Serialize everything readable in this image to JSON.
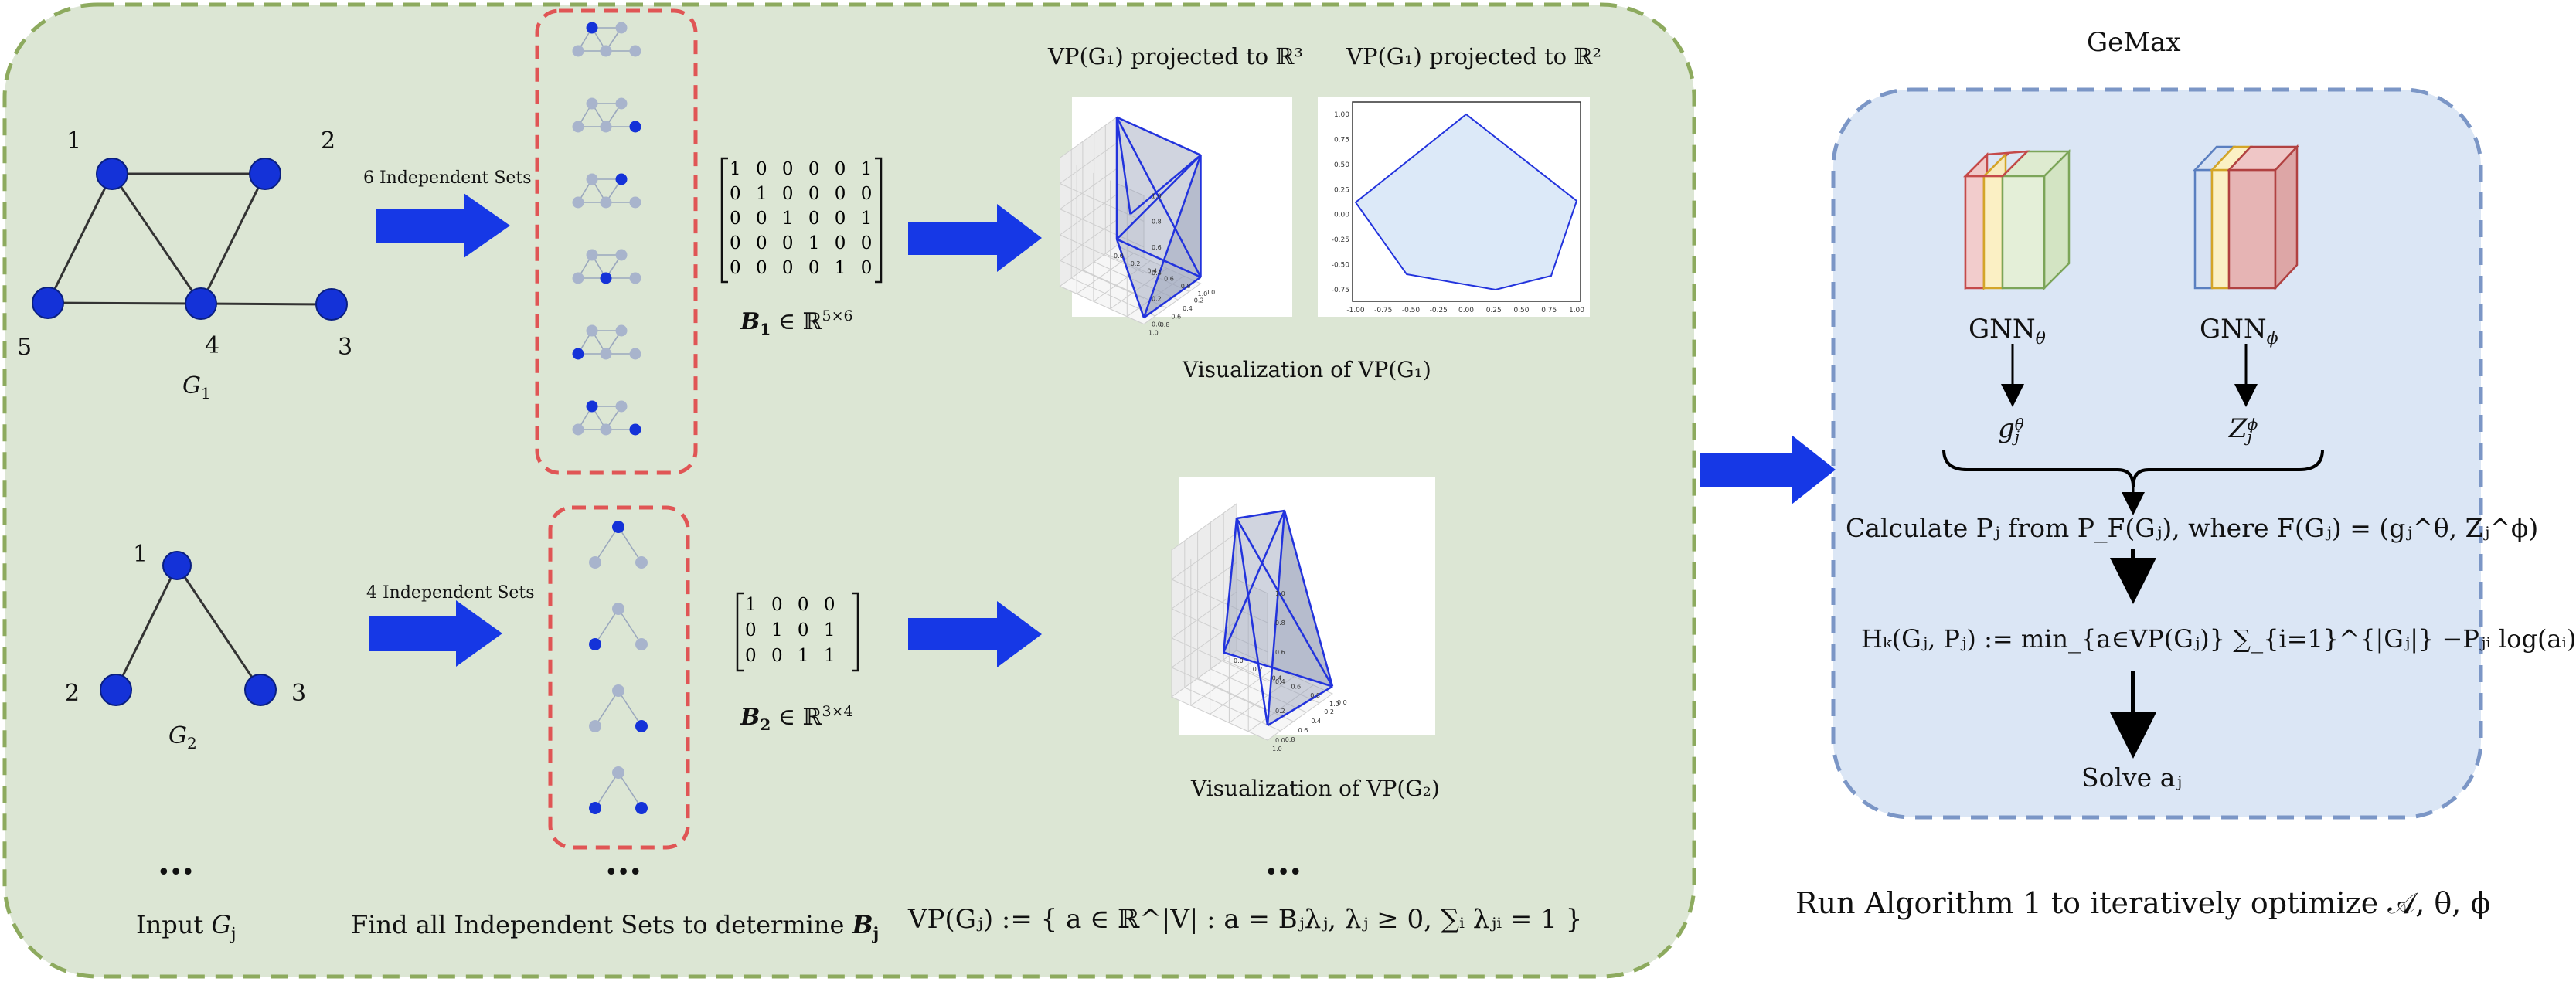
{
  "graph1": {
    "node_labels": [
      "1",
      "2",
      "3",
      "4",
      "5"
    ],
    "name": "G",
    "name_sub": "1"
  },
  "graph2": {
    "node_labels": [
      "1",
      "2",
      "3"
    ],
    "name": "G",
    "name_sub": "2"
  },
  "arrow1_label": "6 Independent Sets",
  "arrow2_label": "4 Independent Sets",
  "matrix1": {
    "rows": [
      "1 0 0 0 0 1",
      "0 1 0 0 0 0",
      "0 0 1 0 0 1",
      "0 0 0 1 0 0",
      "0 0 0 0 1 0"
    ],
    "caption_var": "B",
    "caption_sub": "1",
    "caption_rest": " ∈ ℝ",
    "caption_sup": "5×6"
  },
  "matrix2": {
    "rows": [
      "1 0 0 0",
      "0 1 0 1",
      "0 0 1 1"
    ],
    "caption_var": "B",
    "caption_sub": "2",
    "caption_rest": " ∈ ℝ",
    "caption_sup": "3×4"
  },
  "proj3_title": "VP(G₁) projected to ℝ³",
  "proj2_title": "VP(G₁) projected to ℝ²",
  "vis1_caption": "Visualization of VP(G₁)",
  "vis2_caption": "Visualization of VP(G₂)",
  "plot2d": {
    "xticks": [
      "-1.00",
      "-0.75",
      "-0.50",
      "-0.25",
      "0.00",
      "0.25",
      "0.50",
      "0.75",
      "1.00"
    ],
    "yticks": [
      "1.00",
      "0.75",
      "0.50",
      "0.25",
      "0.00",
      "-0.25",
      "-0.50",
      "-0.75"
    ]
  },
  "plot3d_a": {
    "zticks": [
      "1.0",
      "0.8",
      "0.6",
      "0.4",
      "0.2",
      "0.0"
    ],
    "xticks": [
      "0.0",
      "0.2",
      "0.4",
      "0.6",
      "0.8",
      "1.0"
    ],
    "yticks": [
      "0.0",
      "0.2",
      "0.4",
      "0.6",
      "0.8",
      "1.0"
    ]
  },
  "plot3d_b": {
    "zticks": [
      "1.0",
      "0.8",
      "0.6",
      "0.4",
      "0.2",
      "0.0"
    ],
    "xticks": [
      "0.0",
      "0.2",
      "0.4",
      "0.6",
      "0.8",
      "1.0"
    ],
    "yticks": [
      "0.0",
      "0.2",
      "0.4",
      "0.6",
      "0.8",
      "1.0"
    ]
  },
  "dots": "•••",
  "bottom": {
    "input_label": "Input ",
    "input_var": "G",
    "input_sub": "j",
    "find_label": "Find all Independent Sets to determine  ",
    "find_var": "B",
    "find_sub": "j",
    "vp_definition": "VP(Gⱼ) := { a ∈ ℝ^|V| : a = Bⱼλⱼ,  λⱼ ≥ 0,  ∑ᵢ λⱼᵢ = 1 }"
  },
  "gemax": {
    "title": "GeMax",
    "gnn_theta": "GNN",
    "gnn_theta_sub": "θ",
    "gnn_phi": "GNN",
    "gnn_phi_sub": "ϕ",
    "g_out": "g",
    "g_out_sub": "j",
    "g_out_sup": "θ",
    "z_out": "Z",
    "z_out_sub": "j",
    "z_out_sup": "ϕ",
    "calc_text": "Calculate Pⱼ from P_F(Gⱼ), where F(Gⱼ) = (gⱼ^θ, Zⱼ^ϕ)",
    "h_text": "Hₖ(Gⱼ, Pⱼ) := min_{a∈VP(Gⱼ)} ∑_{i=1}^{|Gⱼ|} −Pⱼᵢ log(aᵢ)",
    "solve_text": "Solve aⱼ"
  },
  "run_text": "Run Algorithm 1 to  iteratively optimize 𝒜, θ, ϕ",
  "colors": {
    "panel_fill": "#dce6d4",
    "panel_border": "#8daa5e",
    "gemax_fill": "#dbe6f5",
    "gemax_border": "#7b96c6",
    "node_blue": "#1432d8",
    "arrow_blue": "#1638e6",
    "dashed_red": "#e05555",
    "faded_node": "#a8b4cc"
  }
}
